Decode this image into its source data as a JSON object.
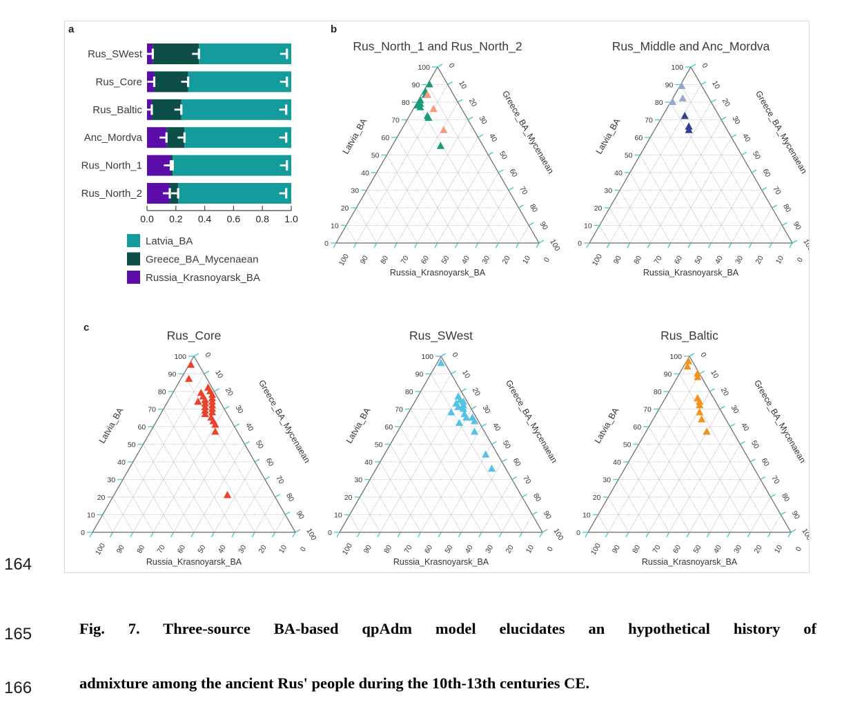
{
  "page": {
    "line_numbers": [
      "164",
      "165",
      "166"
    ]
  },
  "caption": {
    "line1": "Fig. 7. Three-source BA-based qpAdm model elucidates an hypothetical history of",
    "line2": "admixture among the ancient Rus' people during the 10th-13th centuries CE."
  },
  "panel_labels": {
    "a": "a",
    "b": "b",
    "c": "c"
  },
  "chart_data": {
    "bar": {
      "type": "bar",
      "orientation": "horizontal",
      "stacked": true,
      "categories": [
        "Rus_SWest",
        "Rus_Core",
        "Rus_Baltic",
        "Anc_Mordva",
        "Rus_North_1",
        "Rus_North_2"
      ],
      "series_order": [
        "Russia_Krasnoyarsk_BA",
        "Greece_BA_Mycenaean",
        "Latvia_BA"
      ],
      "rows": [
        {
          "name": "Rus_SWest",
          "values": [
            0.04,
            0.32,
            0.64
          ],
          "err_marks": [
            0.04,
            0.36,
            0.97
          ]
        },
        {
          "name": "Rus_Core",
          "values": [
            0.05,
            0.235,
            0.715
          ],
          "err_marks": [
            0.05,
            0.285,
            0.97
          ]
        },
        {
          "name": "Rus_Baltic",
          "values": [
            0.033,
            0.205,
            0.762
          ],
          "err_marks": [
            0.033,
            0.238,
            0.965
          ]
        },
        {
          "name": "Anc_Mordva",
          "values": [
            0.135,
            0.125,
            0.74
          ],
          "err_marks": [
            0.135,
            0.26,
            0.965
          ]
        },
        {
          "name": "Rus_North_1",
          "values": [
            0.165,
            0.013,
            0.822
          ],
          "err_marks": [
            0.165,
            0.178,
            0.97
          ]
        },
        {
          "name": "Rus_North_2",
          "values": [
            0.158,
            0.058,
            0.784
          ],
          "err_marks": [
            0.158,
            0.216,
            0.965
          ]
        }
      ],
      "x_ticks": [
        "0.0",
        "0.2",
        "0.4",
        "0.6",
        "0.8",
        "1.0"
      ],
      "xlim": [
        0,
        1
      ],
      "colors": {
        "Latvia_BA": "#149c9c",
        "Greece_BA_Mycenaean": "#0d4f48",
        "Russia_Krasnoyarsk_BA": "#5c0da9"
      },
      "error_mark_color": "#ffffff",
      "legend": [
        {
          "label": "Latvia_BA",
          "color": "#149c9c"
        },
        {
          "label": "Greece_BA_Mycenaean",
          "color": "#0d4f48"
        },
        {
          "label": "Russia_Krasnoyarsk_BA",
          "color": "#5c0da9"
        }
      ]
    },
    "ternary_axes": {
      "left": "Latvia_BA",
      "right": "Greece_BA_Mycenaean",
      "bottom": "Russia_Krasnoyarsk_BA",
      "tick_labels": [
        0,
        10,
        20,
        30,
        40,
        50,
        60,
        70,
        80,
        90,
        100
      ],
      "major_step": 10,
      "minor_step": 5,
      "tick_color": "#44c7c7",
      "outline_color": "#666666",
      "grid_major_color": "#c6c1cf",
      "grid_minor_color": "#d9d5e0"
    },
    "ternary_plots": [
      {
        "panel": "b",
        "title": "Rus_North_1 and Rus_North_2",
        "series": [
          {
            "name": "Rus_North_1",
            "color": "#1a9c78",
            "points": [
              [
                90,
                1
              ],
              [
                86,
                1
              ],
              [
                84,
                2
              ],
              [
                81,
                1
              ],
              [
                79,
                2
              ],
              [
                78,
                1
              ],
              [
                77,
                3
              ],
              [
                72,
                9
              ],
              [
                71,
                10
              ],
              [
                55,
                24
              ]
            ]
          },
          {
            "name": "Rus_North_2",
            "color": "#f9997a",
            "points": [
              [
                84,
                3
              ],
              [
                76,
                10
              ],
              [
                64,
                21
              ]
            ]
          }
        ]
      },
      {
        "panel": "b",
        "title": "Rus_Middle and Anc_Mordva",
        "series": [
          {
            "name": "Rus_Middle",
            "color": "#97a5d0",
            "points": [
              [
                89,
                1
              ],
              [
                82,
                5
              ],
              [
                80,
                1
              ]
            ]
          },
          {
            "name": "Anc_Mordva",
            "color": "#2e3e90",
            "points": [
              [
                72,
                11
              ],
              [
                66,
                16
              ],
              [
                64,
                17
              ]
            ]
          }
        ]
      },
      {
        "panel": "c",
        "title": "Rus_Core",
        "series": [
          {
            "name": "Rus_Core",
            "color": "#e8432b",
            "points": [
              [
                95,
                1
              ],
              [
                87,
                4
              ],
              [
                82,
                16
              ],
              [
                80,
                18
              ],
              [
                79,
                14
              ],
              [
                78,
                20
              ],
              [
                77,
                16
              ],
              [
                76,
                21
              ],
              [
                75,
                18
              ],
              [
                74,
                22
              ],
              [
                74,
                15
              ],
              [
                73,
                19
              ],
              [
                72,
                23
              ],
              [
                71,
                20
              ],
              [
                70,
                24
              ],
              [
                69,
                21
              ],
              [
                68,
                25
              ],
              [
                67,
                22
              ],
              [
                65,
                26
              ],
              [
                63,
                28
              ],
              [
                61,
                30
              ],
              [
                57,
                32
              ],
              [
                21,
                56
              ]
            ]
          }
        ]
      },
      {
        "panel": "c",
        "title": "Rus_SWest",
        "series": [
          {
            "name": "Rus_SWest",
            "color": "#55c2e5",
            "points": [
              [
                96,
                2
              ],
              [
                77,
                20
              ],
              [
                75,
                22
              ],
              [
                74,
                24
              ],
              [
                73,
                21
              ],
              [
                72,
                25
              ],
              [
                71,
                23
              ],
              [
                70,
                26
              ],
              [
                68,
                21
              ],
              [
                67,
                28
              ],
              [
                65,
                30
              ],
              [
                65,
                33
              ],
              [
                63,
                35
              ],
              [
                62,
                28
              ],
              [
                57,
                38
              ],
              [
                44,
                50
              ],
              [
                36,
                57
              ]
            ]
          }
        ]
      },
      {
        "panel": "c",
        "title": "Rus_Baltic",
        "series": [
          {
            "name": "Rus_Baltic",
            "color": "#f0931f",
            "points": [
              [
                97,
                1
              ],
              [
                94,
                2
              ],
              [
                90,
                9
              ],
              [
                88,
                10
              ],
              [
                76,
                16
              ],
              [
                74,
                18
              ],
              [
                72,
                19
              ],
              [
                68,
                21
              ],
              [
                64,
                24
              ],
              [
                57,
                30
              ]
            ]
          }
        ]
      }
    ]
  }
}
